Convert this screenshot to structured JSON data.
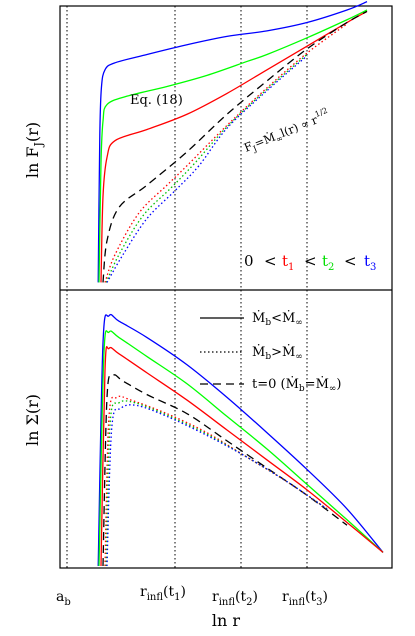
{
  "chart_data": [
    {
      "type": "line",
      "panel": "top",
      "ylabel": "ln F_J(r)",
      "xlabel": "",
      "legend_placement": "bottom-right",
      "time_order_text": {
        "zero": "0",
        "lt": "<",
        "t1": "t1",
        "t2": "t2",
        "t3": "t3"
      },
      "annotations": {
        "eq": "Eq. (18)",
        "asymptote": "F_J = Ṁ_∞ l(r) ∝ r^1/2"
      },
      "ylim": [
        0,
        1
      ],
      "series": [
        {
          "name": "t3",
          "color": "#0000ff",
          "dash": "solid",
          "points": [
            [
              0.78,
              0.02
            ],
            [
              0.82,
              0.55
            ],
            [
              0.86,
              0.72
            ],
            [
              0.95,
              0.785
            ],
            [
              1.2,
              0.81
            ],
            [
              2,
              0.84
            ],
            [
              3,
              0.875
            ],
            [
              4,
              0.905
            ],
            [
              5,
              0.925
            ],
            [
              6,
              0.955
            ],
            [
              7,
              1.0
            ],
            [
              7.5,
              1.03
            ]
          ]
        },
        {
          "name": "t2",
          "color": "#00ff00",
          "dash": "solid",
          "points": [
            [
              0.8,
              0.02
            ],
            [
              0.85,
              0.45
            ],
            [
              0.9,
              0.6
            ],
            [
              1.0,
              0.66
            ],
            [
              1.5,
              0.69
            ],
            [
              2.5,
              0.725
            ],
            [
              3.5,
              0.765
            ],
            [
              4.5,
              0.815
            ],
            [
              5,
              0.84
            ],
            [
              6,
              0.9
            ],
            [
              7,
              0.965
            ],
            [
              7.5,
              1.0
            ]
          ]
        },
        {
          "name": "t1",
          "color": "#ff0000",
          "dash": "solid",
          "points": [
            [
              0.85,
              0.02
            ],
            [
              0.9,
              0.33
            ],
            [
              1.0,
              0.47
            ],
            [
              1.2,
              0.53
            ],
            [
              2,
              0.57
            ],
            [
              3,
              0.625
            ],
            [
              4,
              0.7
            ],
            [
              5,
              0.785
            ],
            [
              6,
              0.87
            ],
            [
              7,
              0.955
            ],
            [
              7.5,
              0.995
            ]
          ]
        },
        {
          "name": "t=0",
          "color": "#000000",
          "dash": "dashed",
          "points": [
            [
              0.9,
              0.02
            ],
            [
              1.0,
              0.17
            ],
            [
              1.3,
              0.29
            ],
            [
              2,
              0.37
            ],
            [
              3,
              0.49
            ],
            [
              4,
              0.625
            ],
            [
              5,
              0.745
            ],
            [
              6,
              0.86
            ],
            [
              7,
              0.955
            ],
            [
              7.5,
              0.995
            ]
          ]
        },
        {
          "name": "t1 (Ṁb>Ṁ∞)",
          "color": "#ff0000",
          "dash": "dotted",
          "points": [
            [
              0.95,
              0.02
            ],
            [
              1.2,
              0.12
            ],
            [
              1.8,
              0.27
            ],
            [
              2.5,
              0.37
            ],
            [
              3,
              0.44
            ],
            [
              4,
              0.585
            ],
            [
              5,
              0.72
            ],
            [
              6,
              0.845
            ],
            [
              7,
              0.95
            ]
          ]
        },
        {
          "name": "t2 (Ṁb>Ṁ∞)",
          "color": "#00c000",
          "dash": "dotted",
          "points": [
            [
              0.98,
              0.02
            ],
            [
              1.3,
              0.12
            ],
            [
              1.9,
              0.26
            ],
            [
              2.6,
              0.36
            ],
            [
              3.2,
              0.45
            ],
            [
              4,
              0.58
            ],
            [
              5,
              0.715
            ],
            [
              6,
              0.84
            ]
          ]
        },
        {
          "name": "t3 (Ṁb>Ṁ∞)",
          "color": "#0000ff",
          "dash": "dotted",
          "points": [
            [
              1.0,
              0.02
            ],
            [
              1.4,
              0.12
            ],
            [
              2.0,
              0.25
            ],
            [
              2.7,
              0.35
            ],
            [
              3.3,
              0.44
            ],
            [
              4,
              0.575
            ],
            [
              5,
              0.71
            ],
            [
              6,
              0.835
            ]
          ]
        }
      ]
    },
    {
      "type": "line",
      "panel": "bottom",
      "ylabel": "ln Σ(r)",
      "xlabel": "ln r",
      "legend_placement": "top-right",
      "legend": [
        {
          "dash": "solid",
          "text": "Ṁb<Ṁ∞"
        },
        {
          "dash": "dotted",
          "text": "Ṁb>Ṁ∞"
        },
        {
          "dash": "dashed",
          "text": "t=0  (Ṁb=Ṁ∞)"
        }
      ],
      "x_ticks": [
        {
          "x": 0,
          "label": "ab"
        },
        {
          "x": 2.7,
          "label": "rinfl(t1)"
        },
        {
          "x": 4.35,
          "label": "rinfl(t2)"
        },
        {
          "x": 6.0,
          "label": "rinfl(t3)"
        }
      ],
      "ylim": [
        0,
        1
      ],
      "series": [
        {
          "name": "t3",
          "color": "#0000ff",
          "dash": "solid",
          "points": [
            [
              0.78,
              0
            ],
            [
              0.9,
              0.82
            ],
            [
              1.05,
              0.92
            ],
            [
              1.3,
              0.9
            ],
            [
              2,
              0.84
            ],
            [
              3,
              0.74
            ],
            [
              4,
              0.62
            ],
            [
              5,
              0.49
            ],
            [
              6,
              0.355
            ],
            [
              7,
              0.21
            ],
            [
              7.9,
              0.05
            ]
          ]
        },
        {
          "name": "t2",
          "color": "#00ff00",
          "dash": "solid",
          "points": [
            [
              0.8,
              0
            ],
            [
              0.92,
              0.77
            ],
            [
              1.05,
              0.86
            ],
            [
              1.3,
              0.84
            ],
            [
              2,
              0.77
            ],
            [
              3,
              0.67
            ],
            [
              4,
              0.55
            ],
            [
              5,
              0.43
            ],
            [
              6,
              0.3
            ],
            [
              7,
              0.17
            ],
            [
              7.9,
              0.05
            ]
          ]
        },
        {
          "name": "t1",
          "color": "#ff0000",
          "dash": "solid",
          "points": [
            [
              0.85,
              0
            ],
            [
              0.95,
              0.72
            ],
            [
              1.05,
              0.8
            ],
            [
              1.3,
              0.78
            ],
            [
              2,
              0.71
            ],
            [
              3,
              0.61
            ],
            [
              4,
              0.5
            ],
            [
              5,
              0.39
            ],
            [
              6,
              0.28
            ],
            [
              7,
              0.16
            ],
            [
              7.9,
              0.05
            ]
          ]
        },
        {
          "name": "t=0",
          "color": "#000000",
          "dash": "dashed",
          "points": [
            [
              0.9,
              0
            ],
            [
              1.0,
              0.62
            ],
            [
              1.15,
              0.7
            ],
            [
              1.4,
              0.68
            ],
            [
              2,
              0.63
            ],
            [
              3,
              0.56
            ],
            [
              4,
              0.46
            ],
            [
              5,
              0.36
            ],
            [
              6,
              0.26
            ],
            [
              7,
              0.15
            ]
          ]
        },
        {
          "name": "t1 (Ṁb>Ṁ∞)",
          "color": "#ff0000",
          "dash": "dotted",
          "points": [
            [
              0.95,
              0
            ],
            [
              1.05,
              0.55
            ],
            [
              1.25,
              0.62
            ],
            [
              1.6,
              0.61
            ],
            [
              2.5,
              0.56
            ],
            [
              3.5,
              0.49
            ],
            [
              4.5,
              0.4
            ],
            [
              5.5,
              0.31
            ],
            [
              6.5,
              0.21
            ]
          ]
        },
        {
          "name": "t2 (Ṁb>Ṁ∞)",
          "color": "#00c000",
          "dash": "dotted",
          "points": [
            [
              0.98,
              0
            ],
            [
              1.08,
              0.53
            ],
            [
              1.3,
              0.6
            ],
            [
              1.7,
              0.6
            ],
            [
              2.5,
              0.555
            ],
            [
              3.5,
              0.485
            ],
            [
              4.5,
              0.4
            ],
            [
              5.5,
              0.31
            ],
            [
              6.5,
              0.21
            ]
          ]
        },
        {
          "name": "t3 (Ṁb>Ṁ∞)",
          "color": "#0000ff",
          "dash": "dotted",
          "points": [
            [
              1.0,
              0
            ],
            [
              1.12,
              0.51
            ],
            [
              1.35,
              0.58
            ],
            [
              1.75,
              0.59
            ],
            [
              2.5,
              0.55
            ],
            [
              3.5,
              0.48
            ],
            [
              4.5,
              0.4
            ],
            [
              5.5,
              0.31
            ],
            [
              6.5,
              0.21
            ]
          ]
        }
      ]
    }
  ]
}
